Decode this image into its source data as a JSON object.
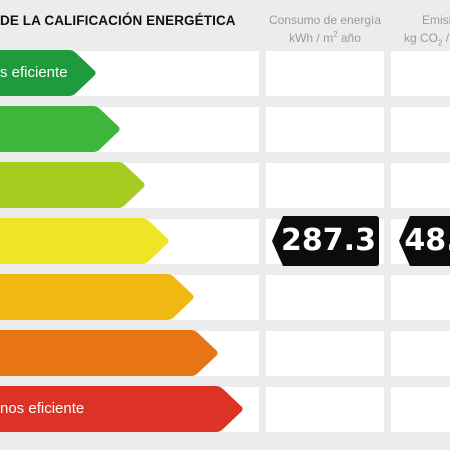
{
  "title": "DE LA CALIFICACIÓN ENERGÉTICA",
  "columns": {
    "consumo_line1": "Consumo de energía",
    "consumo_line2_pre": "kWh / m",
    "consumo_line2_sup": "2",
    "consumo_line2_post": " año",
    "emisiones_line1": "Emisi",
    "emisiones_line2_pre": "kg CO",
    "emisiones_line2_sub": "2",
    "emisiones_line2_post": " /"
  },
  "scale": {
    "top_label": "s eficiente",
    "bottom_label": "nos eficiente",
    "colors": [
      "#1e9b3c",
      "#3db63c",
      "#a6cc1f",
      "#f0e524",
      "#f1b712",
      "#e77516",
      "#dd3326"
    ]
  },
  "rating_row": 3,
  "values": {
    "consumo": "287.3",
    "emisiones": "48."
  }
}
